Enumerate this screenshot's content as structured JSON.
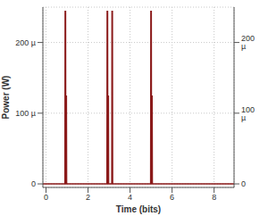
{
  "chart_data": {
    "type": "line",
    "x_label": "Time (bits)",
    "y_label": "Power (W)",
    "x": [
      -0.15,
      0.9,
      0.91,
      0.93,
      0.94,
      0.96,
      0.97,
      0.98,
      2.9,
      2.91,
      2.93,
      2.94,
      2.96,
      2.97,
      2.98,
      3.13,
      3.14,
      3.16,
      3.17,
      4.98,
      4.99,
      5.01,
      5.02,
      5.04,
      5.05,
      5.06,
      8.95
    ],
    "series": [
      {
        "name": "Power",
        "color": "#8b1a1a",
        "values": [
          0,
          0,
          0.000244,
          0.000244,
          0,
          0,
          0.000125,
          0,
          0,
          0.000244,
          0.000244,
          0,
          0,
          0.000125,
          0,
          0,
          0.000244,
          0.000244,
          0,
          0,
          0.000244,
          0.000244,
          0,
          0,
          0.000125,
          0,
          0
        ]
      }
    ],
    "xlim": [
      -0.15,
      8.95
    ],
    "xticks": [
      0,
      2,
      4,
      6,
      8
    ],
    "ylim": [
      -5e-06,
      0.00025
    ],
    "yticks": [
      0,
      {
        "value": 0.0001,
        "label": "100 µ"
      },
      {
        "value": 0.0002,
        "label": "200 µ"
      }
    ],
    "y2lim": [
      -5e-06,
      0.00025
    ],
    "y2ticks": [
      0,
      {
        "value": 0.0001,
        "label": "100 µ"
      },
      {
        "value": 0.0002,
        "label": "200 µ"
      }
    ],
    "grid": true
  }
}
